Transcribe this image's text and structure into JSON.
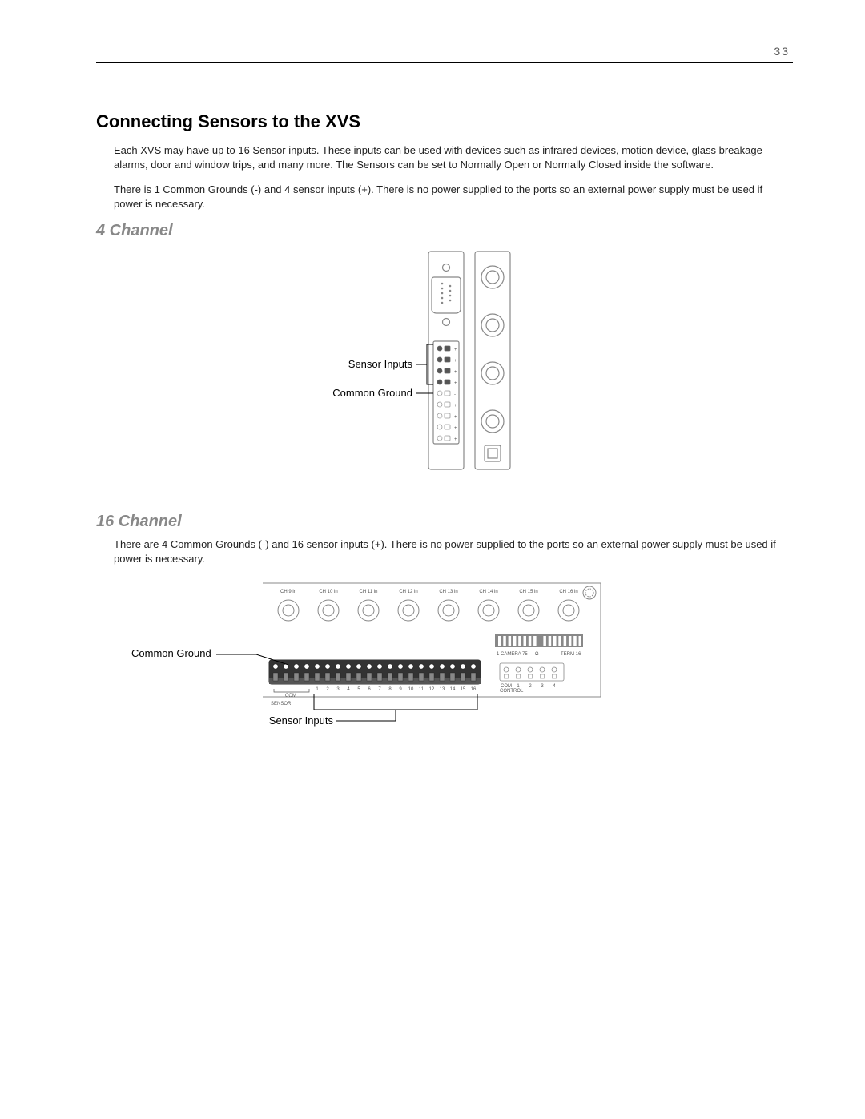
{
  "page_number": "33",
  "h1": "Connecting Sensors to the XVS",
  "intro_p1": "Each XVS may have up to 16 Sensor inputs. These inputs can be used with devices such as infrared devices, motion device, glass breakage alarms, door and window trips, and many more. The Sensors can be set to Normally Open or Normally Closed inside the software.",
  "intro_p2": "There is 1 Common Grounds (-) and 4 sensor inputs (+). There is no power supplied to the ports so an external power supply must be used if power is necessary.",
  "section4": {
    "title": "4 Channel",
    "labels": {
      "sensor_inputs": "Sensor Inputs",
      "common_ground": "Common Ground"
    }
  },
  "section16": {
    "title": "16 Channel",
    "body": "There are 4 Common Grounds (-) and 16 sensor inputs (+). There is no power supplied to the ports so an external power supply must be used if power is necessary.",
    "labels": {
      "sensor_inputs": "Sensor Inputs",
      "common_ground": "Common Ground"
    },
    "bnc_labels": [
      "CH 9 in",
      "CH 10 in",
      "CH 11 in",
      "CH 12 in",
      "CH 13 in",
      "CH 14 in",
      "CH 15 in",
      "CH 16 in"
    ],
    "terminal_numbers": [
      "1",
      "2",
      "3",
      "4",
      "5",
      "6",
      "7",
      "8",
      "9",
      "10",
      "11",
      "12",
      "13",
      "14",
      "15",
      "16"
    ],
    "com_label": "COM",
    "sensor_label": "SENSOR",
    "dip_label_left": "1 CAMERA 75",
    "dip_label_mid": "Ω",
    "dip_label_right": "TERM 16",
    "control_label": "CONTROL",
    "control_nums": [
      "COM",
      "1",
      "2",
      "3",
      "4"
    ]
  },
  "colors": {
    "stroke": "#888888",
    "stroke_dark": "#666666",
    "fill_light": "#ffffff",
    "fill_gray": "#bbbbbb",
    "text": "#000000"
  }
}
